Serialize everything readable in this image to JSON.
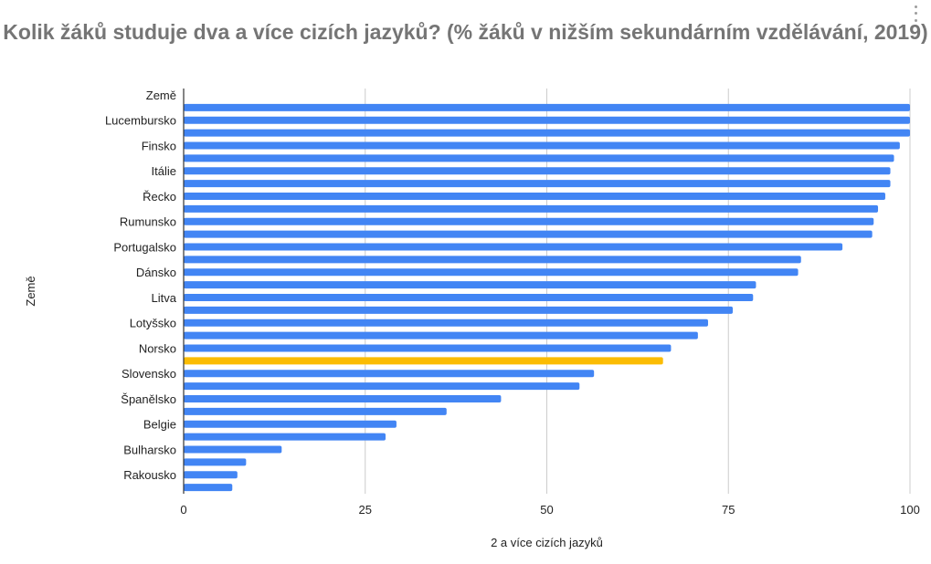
{
  "chart_data": {
    "type": "bar",
    "orientation": "horizontal",
    "title": "Kolik žáků studuje dva a více cizích jazyků? (% žáků v nižším sekundárním vzdělávání, 2019)",
    "xlabel": "2 a více cizích jazyků",
    "ylabel": "Země",
    "xlim": [
      0,
      100
    ],
    "xticks": [
      "0",
      "25",
      "50",
      "75",
      "100"
    ],
    "grid": true,
    "categories": [
      "Země",
      "",
      "Lucembursko",
      "",
      "Finsko",
      "",
      "Itálie",
      "",
      "Řecko",
      "",
      "Rumunsko",
      "",
      "Portugalsko",
      "",
      "Dánsko",
      "",
      "Litva",
      "",
      "Lotyšsko",
      "",
      "Norsko",
      "",
      "Slovensko",
      "",
      "Španělsko",
      "",
      "Belgie",
      "",
      "Bulharsko",
      "",
      "Rakousko",
      ""
    ],
    "values": [
      null,
      100,
      100,
      100,
      98.6,
      97.8,
      97.3,
      97.3,
      96.6,
      95.6,
      95.0,
      94.8,
      90.7,
      85.0,
      84.6,
      78.8,
      78.4,
      75.6,
      72.2,
      70.8,
      67.1,
      66.0,
      56.5,
      54.5,
      43.7,
      36.2,
      29.3,
      27.8,
      13.5,
      8.6,
      7.4,
      6.7
    ],
    "colors": {
      "bar": "#4285f4",
      "highlight": "#fbbc04",
      "highlight_index": 21,
      "grid": "#cccccc",
      "axis": "#333333",
      "title": "#757575",
      "text": "#222222"
    }
  }
}
